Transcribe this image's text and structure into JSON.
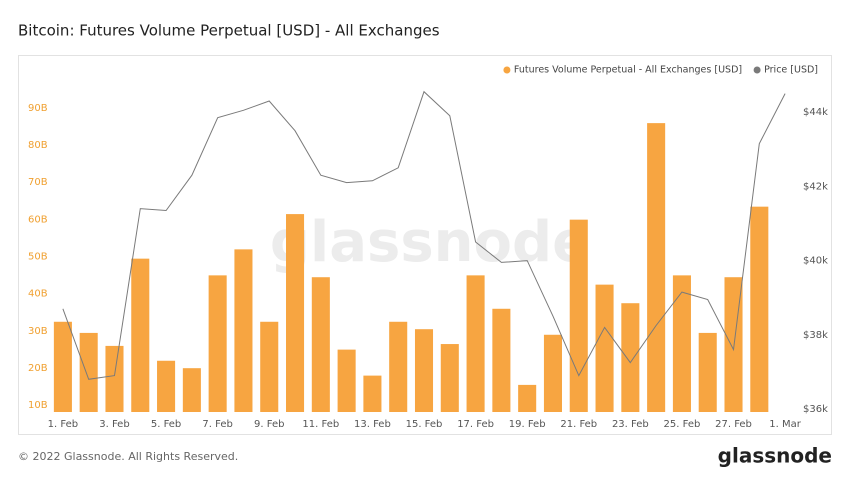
{
  "chart_data": {
    "type": "bar",
    "title": "Bitcoin: Futures Volume Perpetual [USD] - All Exchanges",
    "watermark": "glassnode",
    "footer": "© 2022 Glassnode. All Rights Reserved.",
    "logo": "glassnode",
    "legend": "top-right",
    "grid": false,
    "categories": [
      "1. Feb",
      null,
      "3. Feb",
      null,
      "5. Feb",
      null,
      "7. Feb",
      null,
      "9. Feb",
      null,
      "11. Feb",
      null,
      "13. Feb",
      null,
      "15. Feb",
      null,
      "17. Feb",
      null,
      "19. Feb",
      null,
      "21. Feb",
      null,
      "23. Feb",
      null,
      "25. Feb",
      null,
      "27. Feb",
      null,
      "1. Mar"
    ],
    "series": [
      {
        "name": "Futures Volume Perpetual - All Exchanges [USD]",
        "type": "bar",
        "color": "#f7a541",
        "axis": "y",
        "values": [
          33.5,
          30.5,
          27,
          50.5,
          23,
          21,
          46,
          53,
          33.5,
          62.5,
          45.5,
          26,
          19,
          33.5,
          31.5,
          27.5,
          46,
          37,
          16.5,
          30,
          61,
          43.5,
          38.5,
          87,
          46,
          30.5,
          45.5,
          64.5,
          null
        ]
      },
      {
        "name": "Price [USD]",
        "type": "line",
        "color": "#7a7a7a",
        "axis": "y2",
        "values": [
          38700,
          36800,
          36900,
          41400,
          41350,
          42300,
          43850,
          44050,
          44300,
          43500,
          42300,
          42100,
          42150,
          42500,
          44550,
          43900,
          40500,
          39950,
          40000,
          38500,
          36900,
          38200,
          37250,
          38250,
          39150,
          38950,
          37600,
          43150,
          44500
        ]
      }
    ],
    "ylim": [
      9.2,
      104
    ],
    "yticks": [
      {
        "value": 10,
        "label": "10B"
      },
      {
        "value": 20,
        "label": "20B"
      },
      {
        "value": 30,
        "label": "30B"
      },
      {
        "value": 40,
        "label": "40B"
      },
      {
        "value": 50,
        "label": "50B"
      },
      {
        "value": 60,
        "label": "60B"
      },
      {
        "value": 70,
        "label": "70B"
      },
      {
        "value": 80,
        "label": "80B"
      },
      {
        "value": 90,
        "label": "90B"
      }
    ],
    "y2lim": [
      35919,
      45405
    ],
    "y2ticks": [
      {
        "value": 36000,
        "label": "$36k"
      },
      {
        "value": 38000,
        "label": "$38k"
      },
      {
        "value": 40000,
        "label": "$40k"
      },
      {
        "value": 42000,
        "label": "$42k"
      },
      {
        "value": 44000,
        "label": "$44k"
      }
    ]
  }
}
